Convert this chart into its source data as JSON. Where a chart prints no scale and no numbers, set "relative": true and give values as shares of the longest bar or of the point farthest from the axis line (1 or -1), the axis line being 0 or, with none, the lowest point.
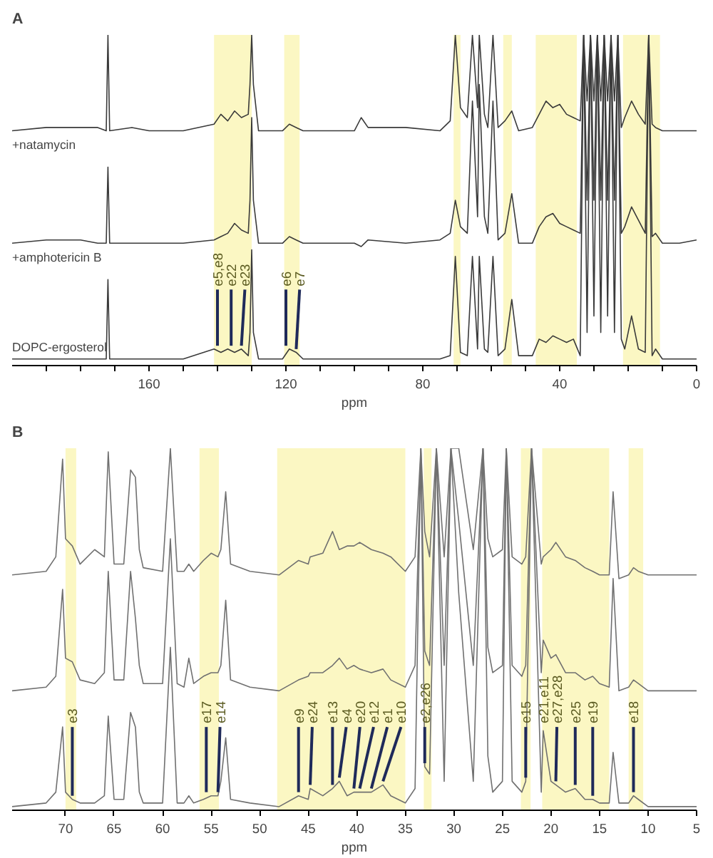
{
  "chart_data": [
    {
      "type": "line",
      "title": "A",
      "xlabel": "ppm",
      "relative": true,
      "tick_labels": "x",
      "xlim": [
        200,
        0
      ],
      "xticks": [
        {
          "value": 190,
          "label": null
        },
        {
          "value": 180,
          "label": null
        },
        {
          "value": 170,
          "label": null
        },
        160,
        {
          "value": 150,
          "label": null
        },
        {
          "value": 140,
          "label": null
        },
        {
          "value": 130,
          "label": null
        },
        120,
        {
          "value": 110,
          "label": null
        },
        {
          "value": 100,
          "label": null
        },
        {
          "value": 90,
          "label": null
        },
        80,
        {
          "value": 70,
          "label": null
        },
        {
          "value": 60,
          "label": null
        },
        {
          "value": 50,
          "label": null
        },
        40,
        {
          "value": 30,
          "label": null
        },
        {
          "value": 20,
          "label": null
        },
        {
          "value": 10,
          "label": null
        },
        0
      ],
      "x": [
        200,
        190,
        180,
        175,
        172.5,
        172,
        171.5,
        165,
        160,
        150,
        141,
        139,
        137,
        135,
        133,
        131,
        130.5,
        130,
        129.5,
        128,
        121,
        119,
        117,
        115,
        100,
        98,
        96,
        85,
        75,
        72,
        70.5,
        69,
        67,
        65.5,
        64,
        63.5,
        62,
        61,
        59.5,
        58,
        56,
        54,
        52,
        48,
        46,
        44,
        42,
        40,
        38,
        36,
        34,
        33,
        32,
        31,
        30,
        29,
        28,
        27,
        26,
        25,
        24,
        23,
        22,
        21,
        19,
        17,
        15,
        14,
        13,
        12,
        10,
        5,
        0
      ],
      "series": [
        {
          "name": "+natamycin",
          "color": "#3a3a3a",
          "values": [
            0.71,
            0.72,
            0.72,
            0.72,
            0.71,
            1.0,
            0.71,
            0.72,
            0.71,
            0.71,
            0.73,
            0.76,
            0.74,
            0.77,
            0.75,
            0.76,
            0.85,
            1.0,
            0.85,
            0.71,
            0.71,
            0.73,
            0.72,
            0.71,
            0.71,
            0.75,
            0.72,
            0.72,
            0.71,
            0.74,
            1.0,
            0.78,
            0.75,
            1.0,
            0.78,
            1.0,
            0.76,
            0.72,
            1.0,
            0.72,
            0.74,
            0.77,
            0.71,
            0.72,
            0.76,
            0.8,
            0.78,
            0.79,
            0.76,
            0.75,
            0.74,
            1.0,
            0.8,
            1.0,
            0.8,
            1.0,
            0.8,
            1.0,
            0.8,
            1.0,
            0.8,
            1.0,
            0.72,
            0.75,
            0.8,
            0.76,
            0.73,
            1.0,
            0.73,
            0.72,
            0.71,
            0.71,
            0.71
          ]
        },
        {
          "name": "+amphotericin B",
          "color": "#3a3a3a",
          "values": [
            0.37,
            0.38,
            0.38,
            0.37,
            0.37,
            0.6,
            0.37,
            0.37,
            0.37,
            0.37,
            0.38,
            0.39,
            0.4,
            0.43,
            0.41,
            0.4,
            0.5,
            0.75,
            0.5,
            0.37,
            0.37,
            0.39,
            0.38,
            0.37,
            0.37,
            0.36,
            0.38,
            0.37,
            0.38,
            0.4,
            0.5,
            0.42,
            0.4,
            0.8,
            0.45,
            0.85,
            0.45,
            0.4,
            0.8,
            0.38,
            0.4,
            0.52,
            0.37,
            0.37,
            0.42,
            0.45,
            0.46,
            0.43,
            0.42,
            0.41,
            0.4,
            1.0,
            0.5,
            1.0,
            0.5,
            1.0,
            0.5,
            1.0,
            0.5,
            1.0,
            0.5,
            1.0,
            0.4,
            0.42,
            0.48,
            0.44,
            0.4,
            1.0,
            0.39,
            0.4,
            0.37,
            0.37,
            0.38
          ]
        },
        {
          "name": "DOPC-ergosterol",
          "color": "#3a3a3a",
          "values": [
            0.02,
            0.02,
            0.02,
            0.02,
            0.02,
            0.26,
            0.02,
            0.02,
            0.02,
            0.02,
            0.05,
            0.04,
            0.05,
            0.04,
            0.05,
            0.03,
            0.1,
            0.35,
            0.1,
            0.02,
            0.02,
            0.05,
            0.04,
            0.02,
            0.02,
            0.02,
            0.02,
            0.02,
            0.02,
            0.03,
            0.33,
            0.04,
            0.03,
            0.33,
            0.05,
            0.33,
            0.05,
            0.04,
            0.33,
            0.03,
            0.05,
            0.2,
            0.03,
            0.03,
            0.08,
            0.07,
            0.09,
            0.08,
            0.07,
            0.08,
            0.03,
            1.0,
            0.1,
            1.0,
            0.15,
            1.0,
            0.1,
            1.0,
            0.15,
            1.0,
            0.1,
            1.0,
            0.08,
            0.05,
            0.15,
            0.05,
            0.04,
            1.0,
            0.03,
            0.05,
            0.02,
            0.02,
            0.02
          ]
        }
      ],
      "bands": [
        {
          "axis": "x",
          "from": 141,
          "to": 130,
          "color": "#fbf7c3"
        },
        {
          "axis": "x",
          "from": 120.5,
          "to": 116,
          "color": "#fbf7c3"
        },
        {
          "axis": "x",
          "from": 71,
          "to": 69,
          "color": "#fbf7c3"
        },
        {
          "axis": "x",
          "from": 56.5,
          "to": 54,
          "color": "#fbf7c3"
        },
        {
          "axis": "x",
          "from": 47,
          "to": 35,
          "color": "#fbf7c3"
        },
        {
          "axis": "x",
          "from": 21.5,
          "to": 10.7,
          "color": "#fbf7c3"
        }
      ],
      "annotations": [
        {
          "text": "e5,e8",
          "x": 140,
          "y": 0.05
        },
        {
          "text": "e22",
          "x": 136,
          "y": 0.05
        },
        {
          "text": "e23",
          "x": 133,
          "y": 0.05
        },
        {
          "text": "e6",
          "x": 120,
          "y": 0.05
        },
        {
          "text": "e7",
          "x": 117,
          "y": 0.04
        }
      ]
    },
    {
      "type": "line",
      "title": "B",
      "xlabel": "ppm",
      "relative": true,
      "tick_labels": "x",
      "xlim": [
        75.5,
        5
      ],
      "xticks": [
        70,
        65,
        60,
        55,
        50,
        45,
        40,
        35,
        30,
        25,
        20,
        15,
        10,
        5
      ],
      "x": [
        75.5,
        72,
        71,
        70.3,
        70,
        69.3,
        68.5,
        67,
        66,
        65.6,
        65,
        64,
        63.3,
        62.8,
        62.4,
        62,
        60,
        59.2,
        58.5,
        57.8,
        57.3,
        56.8,
        55.8,
        55,
        54.3,
        54,
        53.5,
        53,
        51,
        48,
        46,
        45,
        44.8,
        43.5,
        42.5,
        41.8,
        41,
        40.3,
        39.7,
        38.5,
        37.3,
        36.5,
        35,
        34,
        33.4,
        33,
        32.5,
        31.8,
        31,
        30.3,
        29.5,
        28,
        27,
        26.5,
        26,
        25,
        24.6,
        24,
        23,
        22.6,
        22,
        21,
        20.8,
        20,
        19.5,
        18.5,
        17.5,
        16.5,
        15.7,
        15,
        14,
        13.6,
        13,
        12,
        11.5,
        11,
        10,
        8,
        5
      ],
      "series": [
        {
          "color": "#707070",
          "values": [
            0.65,
            0.66,
            0.7,
            0.97,
            0.75,
            0.73,
            0.68,
            0.72,
            0.7,
            0.99,
            0.68,
            0.68,
            0.94,
            0.92,
            0.72,
            0.67,
            0.66,
            1.0,
            0.66,
            0.66,
            0.68,
            0.66,
            0.69,
            0.71,
            0.7,
            0.72,
            0.88,
            0.68,
            0.66,
            0.65,
            0.69,
            0.68,
            0.7,
            0.71,
            0.77,
            0.72,
            0.73,
            0.73,
            0.74,
            0.72,
            0.71,
            0.7,
            0.66,
            0.7,
            1.0,
            0.77,
            0.7,
            1.0,
            0.7,
            1.0,
            1.0,
            0.72,
            1.0,
            0.75,
            0.7,
            0.72,
            1.0,
            0.7,
            0.68,
            0.7,
            1.0,
            0.68,
            0.7,
            0.72,
            0.74,
            0.7,
            0.69,
            0.67,
            0.66,
            0.65,
            0.65,
            0.88,
            0.64,
            0.65,
            0.67,
            0.66,
            0.65,
            0.65,
            0.65
          ]
        },
        {
          "color": "#707070",
          "values": [
            0.33,
            0.34,
            0.37,
            0.61,
            0.42,
            0.41,
            0.36,
            0.35,
            0.38,
            0.66,
            0.36,
            0.36,
            0.66,
            0.53,
            0.4,
            0.35,
            0.35,
            0.75,
            0.35,
            0.34,
            0.42,
            0.35,
            0.37,
            0.38,
            0.38,
            0.4,
            0.58,
            0.36,
            0.34,
            0.33,
            0.36,
            0.37,
            0.38,
            0.38,
            0.4,
            0.42,
            0.39,
            0.4,
            0.39,
            0.38,
            0.39,
            0.36,
            0.34,
            0.4,
            1.0,
            0.44,
            0.4,
            1.0,
            0.4,
            1.0,
            0.8,
            0.4,
            1.0,
            0.45,
            0.38,
            0.4,
            1.0,
            0.4,
            0.37,
            0.4,
            1.0,
            0.38,
            0.47,
            0.42,
            0.43,
            0.38,
            0.38,
            0.36,
            0.37,
            0.35,
            0.34,
            0.64,
            0.33,
            0.34,
            0.36,
            0.35,
            0.33,
            0.33,
            0.33
          ]
        },
        {
          "color": "#707070",
          "values": [
            0.01,
            0.02,
            0.05,
            0.23,
            0.05,
            0.03,
            0.02,
            0.02,
            0.04,
            0.26,
            0.03,
            0.03,
            0.27,
            0.23,
            0.05,
            0.02,
            0.02,
            0.45,
            0.02,
            0.02,
            0.04,
            0.02,
            0.03,
            0.04,
            0.04,
            0.08,
            0.2,
            0.03,
            0.02,
            0.01,
            0.04,
            0.03,
            0.06,
            0.04,
            0.06,
            0.08,
            0.04,
            0.05,
            0.05,
            0.05,
            0.07,
            0.04,
            0.02,
            0.06,
            1.0,
            0.12,
            0.1,
            1.0,
            0.08,
            1.0,
            0.6,
            0.08,
            1.0,
            0.15,
            0.05,
            0.08,
            1.0,
            0.08,
            0.05,
            0.08,
            1.0,
            0.05,
            0.22,
            0.08,
            0.07,
            0.05,
            0.06,
            0.03,
            0.03,
            0.02,
            0.02,
            0.16,
            0.02,
            0.02,
            0.04,
            0.03,
            0.01,
            0.01,
            0.01
          ]
        }
      ],
      "bands": [
        {
          "axis": "x",
          "from": 70,
          "to": 68.9,
          "color": "#fbf7c3"
        },
        {
          "axis": "x",
          "from": 56.2,
          "to": 54.2,
          "color": "#fbf7c3"
        },
        {
          "axis": "x",
          "from": 48.2,
          "to": 35,
          "color": "#fbf7c3"
        },
        {
          "axis": "x",
          "from": 33.1,
          "to": 32.3,
          "color": "#fbf7c3"
        },
        {
          "axis": "x",
          "from": 23.1,
          "to": 22.1,
          "color": "#fbf7c3"
        },
        {
          "axis": "x",
          "from": 20.9,
          "to": 14,
          "color": "#fbf7c3"
        },
        {
          "axis": "x",
          "from": 12,
          "to": 10.5,
          "color": "#fbf7c3"
        }
      ],
      "annotations": [
        {
          "text": "e3",
          "x": 69.3,
          "y": 0.03
        },
        {
          "text": "e17",
          "x": 55.5,
          "y": 0.04
        },
        {
          "text": "e14",
          "x": 54.3,
          "y": 0.04
        },
        {
          "text": "e9",
          "x": 46,
          "y": 0.04
        },
        {
          "text": "e24",
          "x": 44.8,
          "y": 0.06
        },
        {
          "text": "e13",
          "x": 42.5,
          "y": 0.06
        },
        {
          "text": "e4",
          "x": 41.8,
          "y": 0.08
        },
        {
          "text": "e20",
          "x": 40.3,
          "y": 0.05
        },
        {
          "text": "e12",
          "x": 39.7,
          "y": 0.05
        },
        {
          "text": "e1",
          "x": 38.5,
          "y": 0.05
        },
        {
          "text": "e10",
          "x": 37.3,
          "y": 0.07
        },
        {
          "text": "e2,e26",
          "x": 33,
          "y": 0.12
        },
        {
          "text": "e15",
          "x": 22.6,
          "y": 0.08
        },
        {
          "text": "e21,e11",
          "x": 20.8,
          "y": 0.22
        },
        {
          "text": "e27,e28",
          "x": 19.5,
          "y": 0.07
        },
        {
          "text": "e25",
          "x": 17.5,
          "y": 0.06
        },
        {
          "text": "e19",
          "x": 15.7,
          "y": 0.03
        },
        {
          "text": "e18",
          "x": 11.5,
          "y": 0.04
        }
      ]
    }
  ]
}
